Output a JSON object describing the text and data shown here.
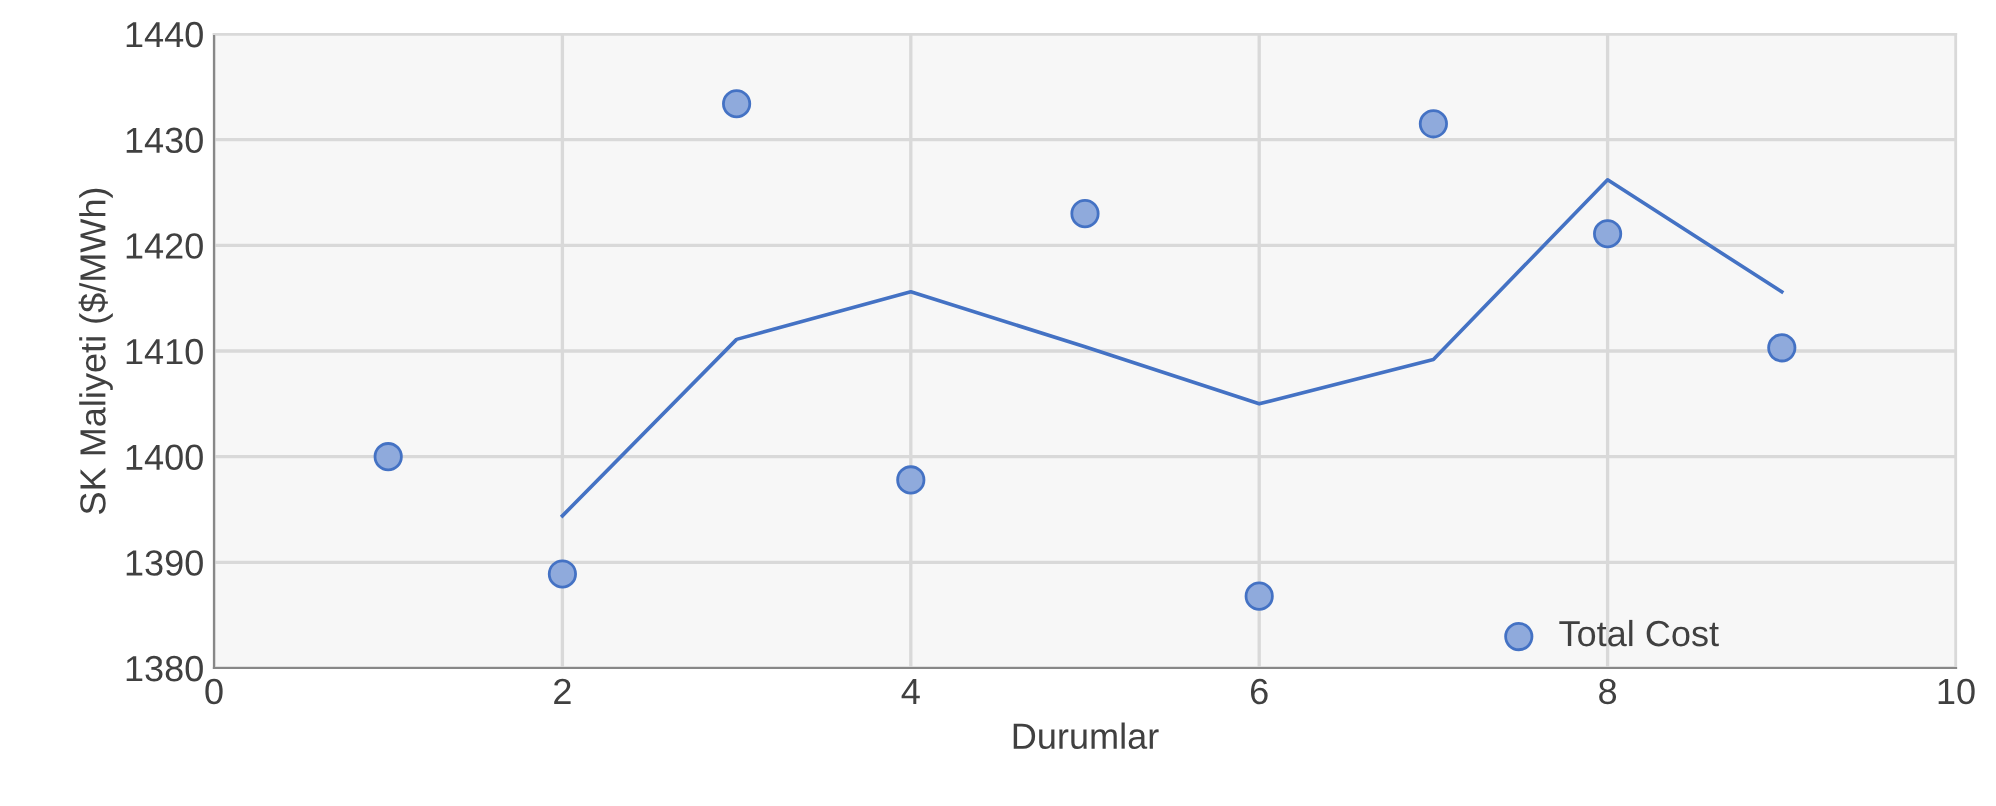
{
  "chart_data": {
    "type": "scatter",
    "xlabel": "Durumlar",
    "ylabel": "SK Maliyeti ($/MWh)",
    "xlim": [
      0,
      10
    ],
    "xticks": [
      0,
      2,
      4,
      6,
      8,
      10
    ],
    "ylim": [
      1380,
      1440
    ],
    "yticks": [
      1380,
      1390,
      1400,
      1410,
      1420,
      1430,
      1440
    ],
    "grid": true,
    "legend": "bottom right",
    "series": [
      {
        "name": "Total Cost",
        "marker": "circle",
        "color": "#8faadc",
        "x": [
          1,
          2,
          3,
          4,
          5,
          6,
          7,
          8,
          9
        ],
        "values": [
          1400.0,
          1388.9,
          1433.4,
          1397.8,
          1423.0,
          1386.8,
          1431.5,
          1421.1,
          1410.3
        ]
      },
      {
        "type": "line",
        "marker": "none",
        "color": "#4472c4",
        "x": [
          2,
          3,
          4,
          5,
          6,
          7,
          8,
          9
        ],
        "values": [
          1394.4,
          1411.1,
          1415.6,
          1410.4,
          1405.0,
          1409.2,
          1426.2,
          1415.6
        ]
      }
    ]
  }
}
